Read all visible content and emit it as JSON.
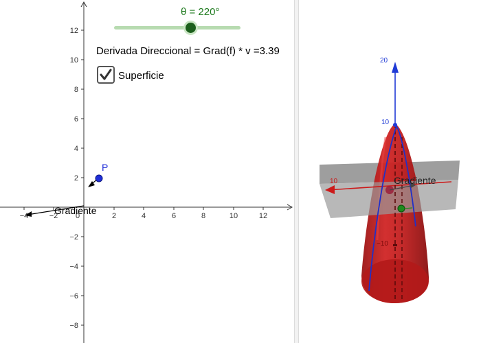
{
  "slider": {
    "label": "θ = 220°",
    "value": 220,
    "min": 0,
    "max": 360
  },
  "derivada": {
    "text": "Derivada Direccional = Grad(f) * v =3.39"
  },
  "checkbox": {
    "label": "Superficie",
    "checked": true
  },
  "graph2d": {
    "x_tick_labels": [
      "−4",
      "−2",
      "0",
      "2",
      "4",
      "6",
      "8",
      "10",
      "12"
    ],
    "y_tick_labels": [
      "12",
      "10",
      "8",
      "6",
      "4",
      "2",
      "−2",
      "−4",
      "−6",
      "−8"
    ],
    "point_label": "P",
    "gradient_label": "Gradiente"
  },
  "graph3d": {
    "z_tick_labels": [
      "20",
      "10",
      "−10"
    ],
    "x_tick_label": "10",
    "gradient_label": "Gradiente",
    "colors": {
      "surface": "#c21f1f",
      "plane": "#8c8c8c",
      "z_axis": "#1f3ad6",
      "x_axis": "#cc1a1a",
      "curve": "#2030c8"
    }
  },
  "colors": {
    "point": "#1f2ed8",
    "slider": "#1e7a1e"
  }
}
